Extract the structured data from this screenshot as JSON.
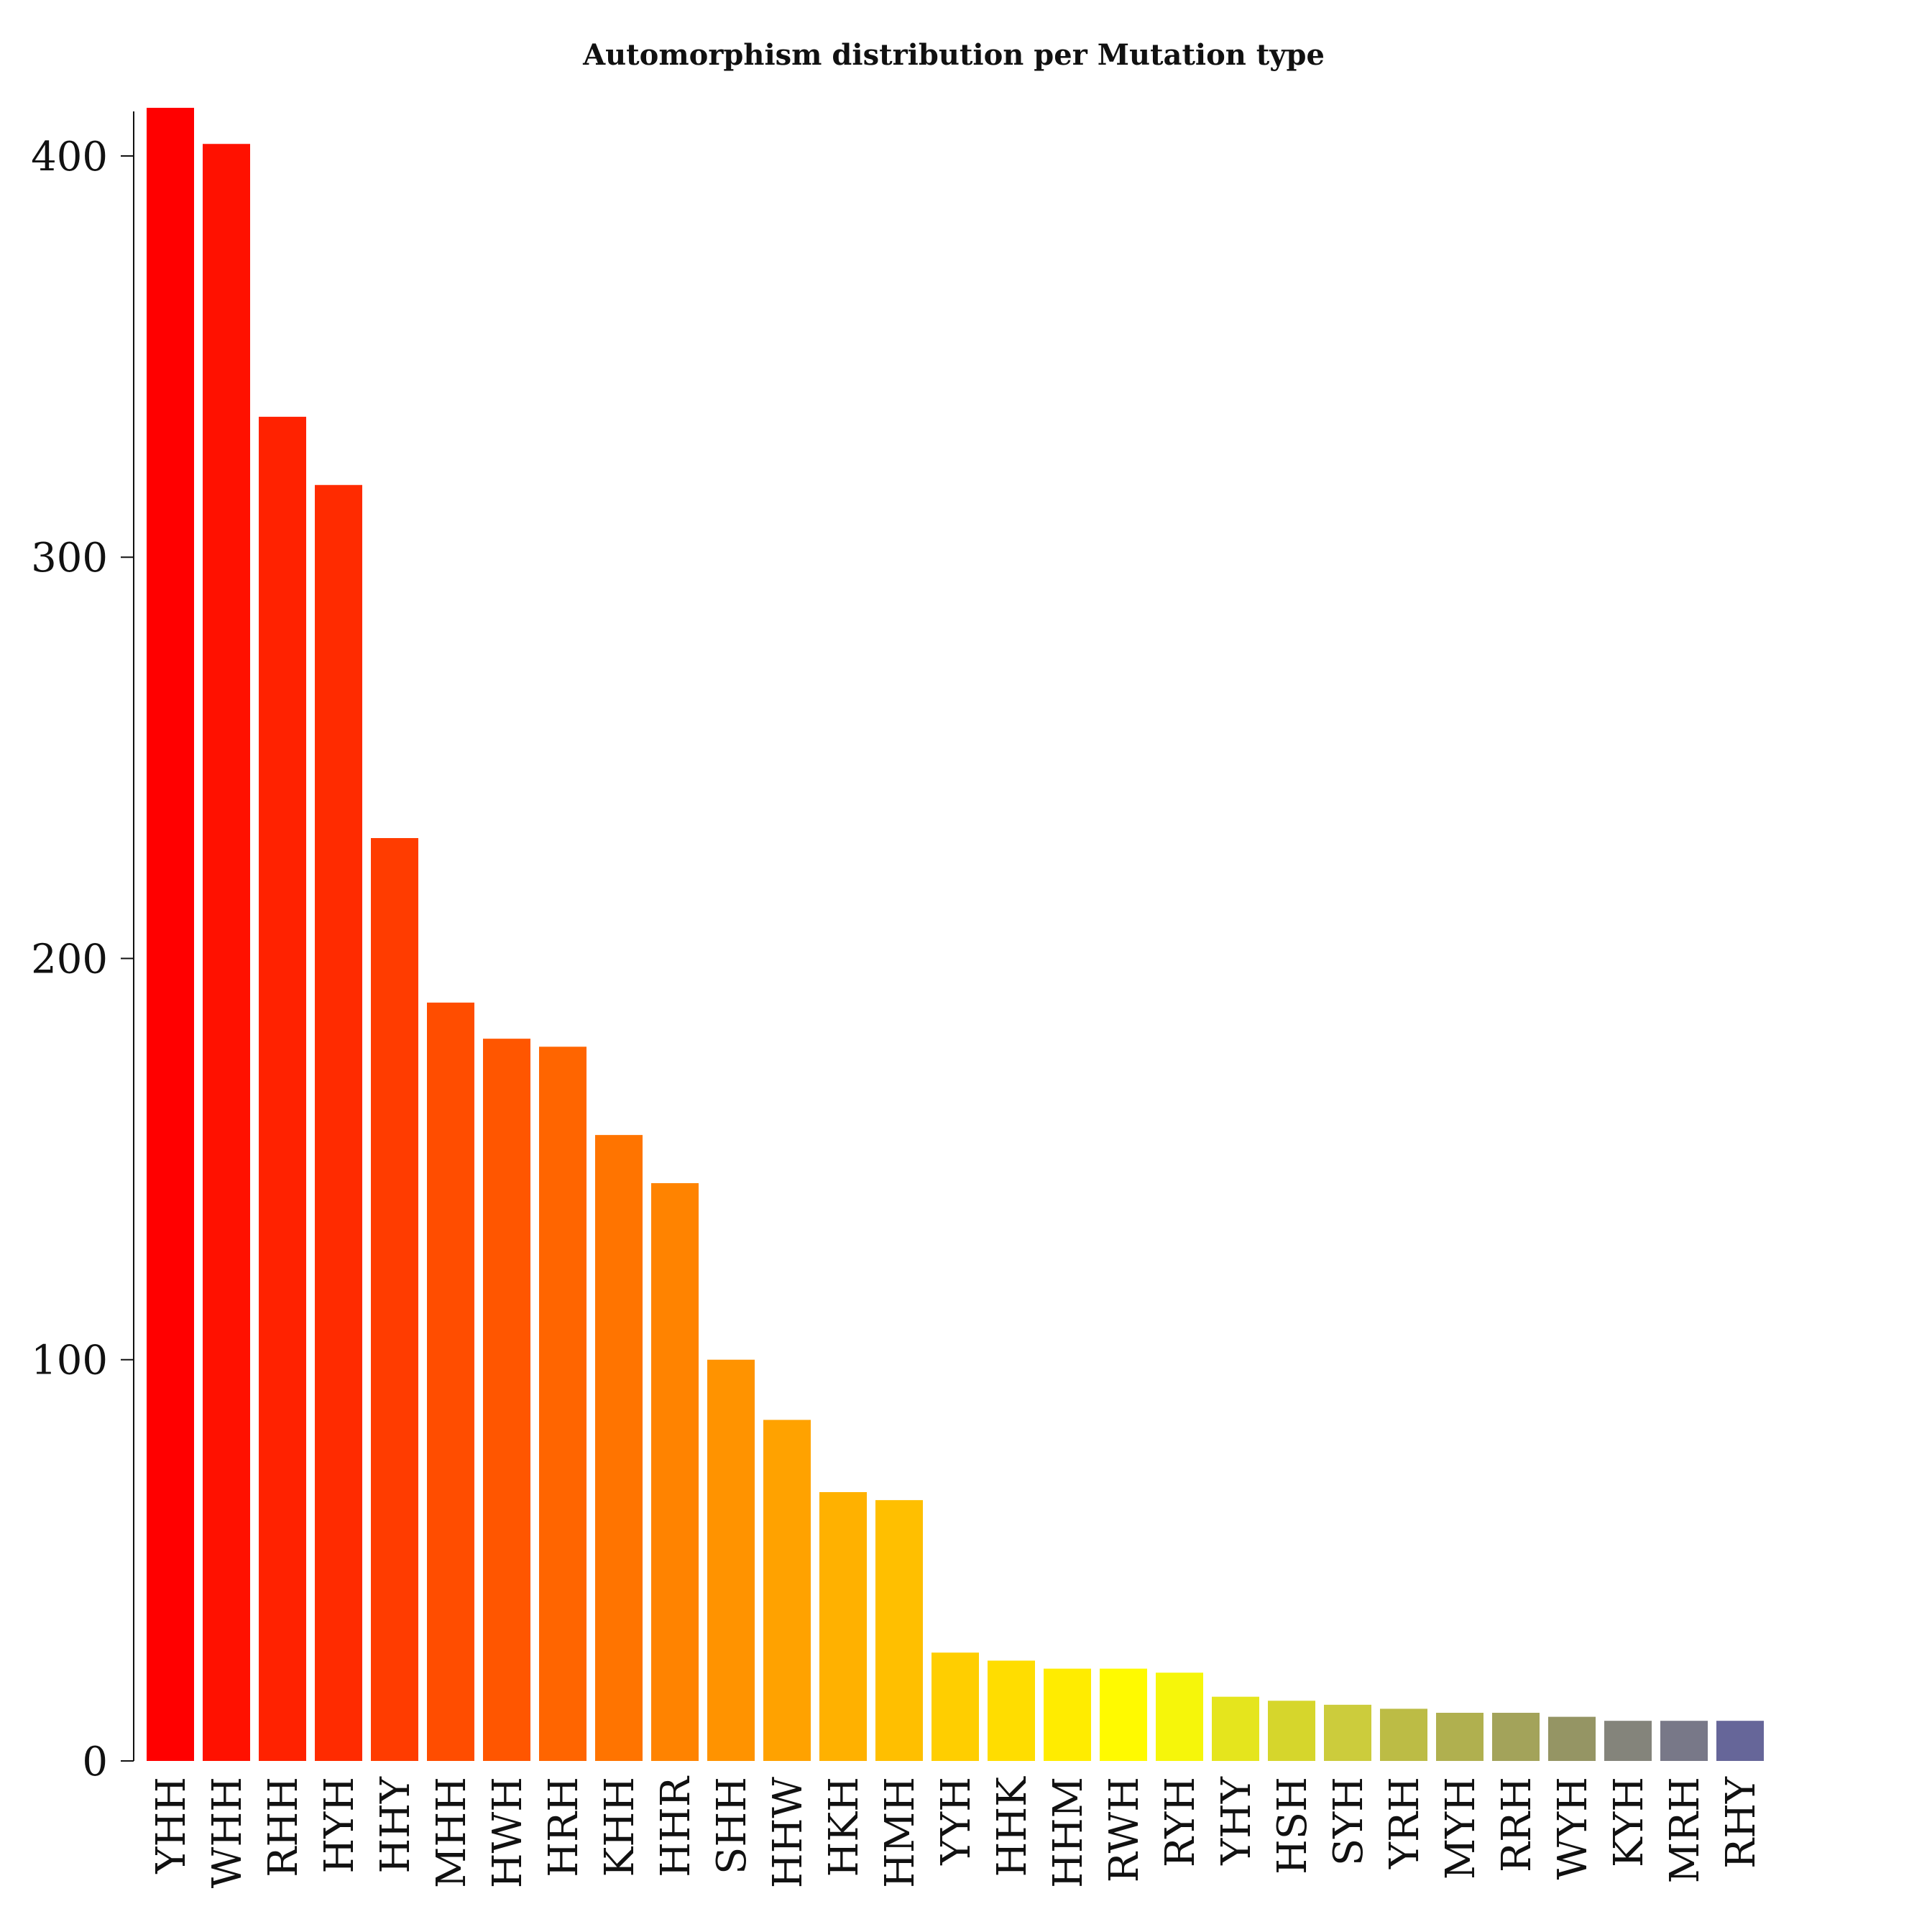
{
  "chart_data": {
    "type": "bar",
    "title": "Automorphism distribution per Mutation type",
    "xlabel": "",
    "ylabel": "",
    "ylim": [
      0,
      412
    ],
    "yticks": [
      0,
      100,
      200,
      300,
      400
    ],
    "grid": false,
    "legend": "none",
    "categories": [
      "YHH",
      "WHH",
      "RHH",
      "HYH",
      "HHY",
      "MHH",
      "HWH",
      "HRH",
      "KHH",
      "HHR",
      "SHH",
      "HHW",
      "HKH",
      "HMH",
      "YYH",
      "HHK",
      "HHM",
      "RWH",
      "RYH",
      "YHY",
      "HSH",
      "SYH",
      "YRH",
      "MYH",
      "RRH",
      "WYH",
      "KYH",
      "MRH",
      "RHY"
    ],
    "values": [
      412,
      403,
      335,
      318,
      230,
      189,
      180,
      178,
      156,
      144,
      100,
      85,
      67,
      65,
      27,
      25,
      23,
      23,
      22,
      16,
      15,
      14,
      13,
      12,
      12,
      11,
      10,
      10,
      10
    ],
    "colors": [
      "#ff0000",
      "#ff1100",
      "#ff2200",
      "#ff2b00",
      "#ff3c00",
      "#ff4d00",
      "#ff5600",
      "#ff6500",
      "#ff7400",
      "#ff8300",
      "#ff9300",
      "#ffa200",
      "#ffb100",
      "#ffbf00",
      "#ffce00",
      "#ffdd00",
      "#ffec00",
      "#fffa00",
      "#f6f60a",
      "#e5e51d",
      "#d6d62c",
      "#cccc3c",
      "#bcbc45",
      "#b0b04f",
      "#a3a35a",
      "#959564",
      "#84847b",
      "#787888",
      "#666699"
    ]
  }
}
